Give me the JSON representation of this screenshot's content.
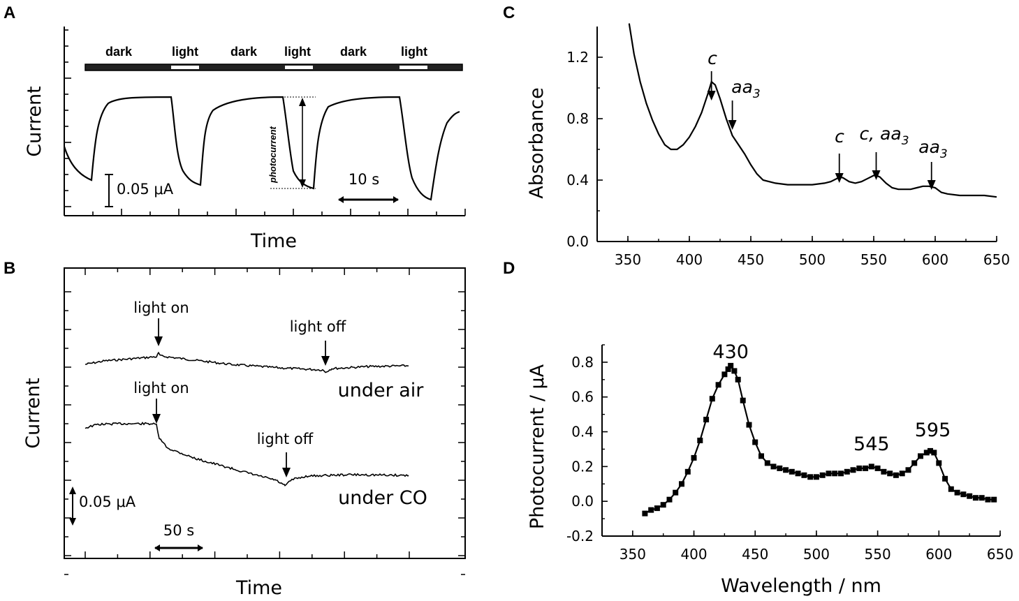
{
  "chart_data": [
    {
      "panel": "A",
      "type": "line",
      "xlabel": "Time",
      "ylabel": "Current",
      "illumination_sequence": [
        "dark",
        "light",
        "dark",
        "light",
        "dark",
        "light"
      ],
      "photocurrent_label": "photocurrent",
      "current_scale_label": "0.05 μA",
      "time_scale_label": "10 s"
    },
    {
      "panel": "B",
      "type": "line",
      "xlabel": "Time",
      "ylabel": "Current",
      "series": [
        {
          "name": "under air",
          "light_on_label": "light on",
          "light_off_label": "light off"
        },
        {
          "name": "under CO",
          "light_on_label": "light on",
          "light_off_label": "light off"
        }
      ],
      "current_scale_label": "0.05 μA",
      "time_scale_label": "50 s"
    },
    {
      "panel": "C",
      "type": "line",
      "xlabel": "",
      "ylabel": "Absorbance",
      "xlim": [
        325,
        650
      ],
      "ylim": [
        0.0,
        1.4
      ],
      "xticks": [
        "350",
        "400",
        "450",
        "500",
        "550",
        "600",
        "650"
      ],
      "yticks": [
        "0.0",
        "0.4",
        "0.8",
        "1.2"
      ],
      "x": [
        351,
        355,
        360,
        365,
        370,
        375,
        380,
        385,
        390,
        395,
        400,
        405,
        410,
        415,
        418,
        421,
        425,
        430,
        435,
        440,
        445,
        450,
        455,
        460,
        470,
        480,
        490,
        500,
        505,
        510,
        515,
        520,
        522,
        525,
        530,
        535,
        540,
        545,
        550,
        552,
        555,
        560,
        565,
        570,
        575,
        580,
        585,
        590,
        595,
        600,
        605,
        610,
        620,
        630,
        640,
        650
      ],
      "y": [
        1.42,
        1.22,
        1.04,
        0.9,
        0.79,
        0.7,
        0.63,
        0.6,
        0.6,
        0.63,
        0.68,
        0.75,
        0.84,
        0.96,
        1.04,
        1.02,
        0.93,
        0.8,
        0.69,
        0.63,
        0.57,
        0.5,
        0.44,
        0.4,
        0.38,
        0.37,
        0.37,
        0.37,
        0.375,
        0.38,
        0.39,
        0.41,
        0.42,
        0.415,
        0.39,
        0.38,
        0.39,
        0.41,
        0.43,
        0.43,
        0.42,
        0.38,
        0.35,
        0.34,
        0.34,
        0.34,
        0.35,
        0.36,
        0.36,
        0.35,
        0.32,
        0.31,
        0.3,
        0.3,
        0.3,
        0.29
      ],
      "annotations": [
        {
          "text": "c",
          "sub": "",
          "x": 418
        },
        {
          "text": "aa",
          "sub": "3",
          "x": 435
        },
        {
          "text": "c",
          "sub": "",
          "x": 522
        },
        {
          "text": "c, aa",
          "sub": "3",
          "x": 552
        },
        {
          "text": "aa",
          "sub": "3",
          "x": 597
        }
      ]
    },
    {
      "panel": "D",
      "type": "line",
      "xlabel": "Wavelength / nm",
      "ylabel": "Photocurrent / μA",
      "xlim": [
        325,
        650
      ],
      "ylim": [
        -0.2,
        0.9
      ],
      "xticks": [
        "350",
        "400",
        "450",
        "500",
        "550",
        "600",
        "650"
      ],
      "yticks": [
        "-0.2",
        "0.0",
        "0.2",
        "0.4",
        "0.6",
        "0.8"
      ],
      "x": [
        360,
        365,
        370,
        375,
        380,
        385,
        390,
        395,
        400,
        405,
        410,
        415,
        420,
        425,
        428,
        430,
        433,
        436,
        440,
        445,
        450,
        455,
        460,
        465,
        470,
        475,
        480,
        485,
        490,
        495,
        500,
        505,
        510,
        515,
        520,
        525,
        530,
        535,
        540,
        545,
        550,
        555,
        560,
        565,
        570,
        575,
        580,
        585,
        590,
        593,
        596,
        600,
        605,
        610,
        615,
        620,
        625,
        630,
        635,
        640,
        645
      ],
      "y": [
        -0.07,
        -0.05,
        -0.04,
        -0.02,
        0.01,
        0.05,
        0.1,
        0.17,
        0.25,
        0.35,
        0.47,
        0.59,
        0.67,
        0.73,
        0.76,
        0.78,
        0.75,
        0.7,
        0.58,
        0.44,
        0.34,
        0.26,
        0.22,
        0.2,
        0.19,
        0.18,
        0.17,
        0.16,
        0.15,
        0.14,
        0.14,
        0.15,
        0.16,
        0.16,
        0.16,
        0.17,
        0.18,
        0.19,
        0.19,
        0.2,
        0.19,
        0.17,
        0.16,
        0.15,
        0.16,
        0.18,
        0.22,
        0.26,
        0.28,
        0.29,
        0.28,
        0.22,
        0.13,
        0.07,
        0.05,
        0.04,
        0.03,
        0.02,
        0.02,
        0.01,
        0.01
      ],
      "peak_labels": [
        {
          "text": "430",
          "x": 430
        },
        {
          "text": "545",
          "x": 545
        },
        {
          "text": "595",
          "x": 595
        }
      ]
    }
  ]
}
